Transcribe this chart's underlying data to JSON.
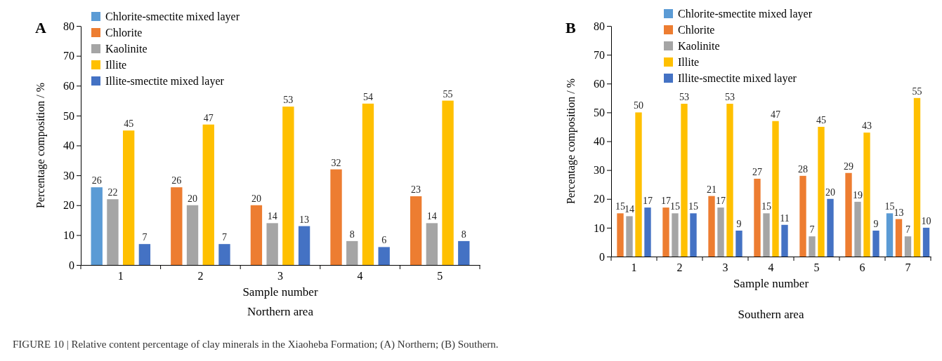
{
  "chart_data": [
    {
      "type": "bar",
      "title": "A",
      "xlabel": "Sample number",
      "ylabel": "Percentage composition / %",
      "categories": [
        "1",
        "2",
        "3",
        "4",
        "5"
      ],
      "ylim": [
        0,
        80
      ],
      "yticks": [
        0,
        10,
        20,
        30,
        40,
        50,
        60,
        70,
        80
      ],
      "legend": "top left",
      "data_labels": true,
      "series": [
        {
          "name": "Chlorite-smectite mixed layer",
          "color": "#5b9bd5",
          "values": [
            26,
            null,
            null,
            null,
            null
          ]
        },
        {
          "name": "Chlorite",
          "color": "#ed7d31",
          "values": [
            null,
            26,
            20,
            32,
            23
          ]
        },
        {
          "name": "Kaolinite",
          "color": "#a5a5a5",
          "values": [
            22,
            20,
            14,
            8,
            14
          ]
        },
        {
          "name": "Illite",
          "color": "#ffc000",
          "values": [
            45,
            47,
            53,
            54,
            55
          ]
        },
        {
          "name": "Illite-smectite mixed layer",
          "color": "#4472c4",
          "values": [
            7,
            7,
            13,
            6,
            8
          ]
        }
      ],
      "annotations": [
        "Northern area",
        "FIGURE 10 | Relative content percentage of clay minerals in the Xiaoheba Formation; (A) Northern; (B) Southern."
      ]
    },
    {
      "type": "bar",
      "title": "B",
      "xlabel": "Sample number",
      "ylabel": "Percentage composition / %",
      "categories": [
        "1",
        "2",
        "3",
        "4",
        "5",
        "6",
        "7"
      ],
      "ylim": [
        0,
        80
      ],
      "yticks": [
        0,
        10,
        20,
        30,
        40,
        50,
        60,
        70,
        80
      ],
      "legend": "top",
      "data_labels": true,
      "series": [
        {
          "name": "Chlorite-smectite mixed layer",
          "color": "#5b9bd5",
          "values": [
            null,
            null,
            null,
            null,
            null,
            null,
            15
          ]
        },
        {
          "name": "Chlorite",
          "color": "#ed7d31",
          "values": [
            15,
            17,
            21,
            27,
            28,
            29,
            13
          ]
        },
        {
          "name": "Kaolinite",
          "color": "#a5a5a5",
          "values": [
            14,
            15,
            17,
            15,
            7,
            19,
            7
          ]
        },
        {
          "name": "Illite",
          "color": "#ffc000",
          "values": [
            50,
            53,
            53,
            47,
            45,
            43,
            55
          ]
        },
        {
          "name": "Illite-smectite mixed layer",
          "color": "#4472c4",
          "values": [
            17,
            15,
            9,
            11,
            20,
            9,
            10
          ]
        }
      ],
      "annotations": [
        "Southern area"
      ]
    }
  ]
}
